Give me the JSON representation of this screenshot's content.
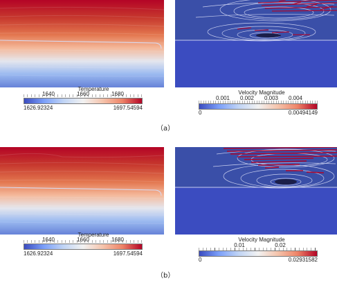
{
  "captions": {
    "a": "（a）",
    "b": "（b）"
  },
  "temperature_colorbar": {
    "title": "Temperature",
    "min": "1626.92324",
    "max": "1697.54594",
    "ticks": [
      "1640",
      "1660",
      "1680"
    ]
  },
  "velocity_colorbar_a": {
    "title": "Velocity Magnitude",
    "min": "0",
    "max": "0.00494149",
    "ticks": [
      "0.001",
      "0.002",
      "0.003",
      "0.004"
    ]
  },
  "velocity_colorbar_b": {
    "title": "Velocity Magnitude",
    "min": "0",
    "max": "0.02931582",
    "ticks": [
      "0.01",
      "0.02"
    ]
  },
  "colors": {
    "low": "#3b4cc0",
    "mid": "#f2f2f2",
    "high": "#b40426",
    "background_field": "#3a4fa8"
  }
}
